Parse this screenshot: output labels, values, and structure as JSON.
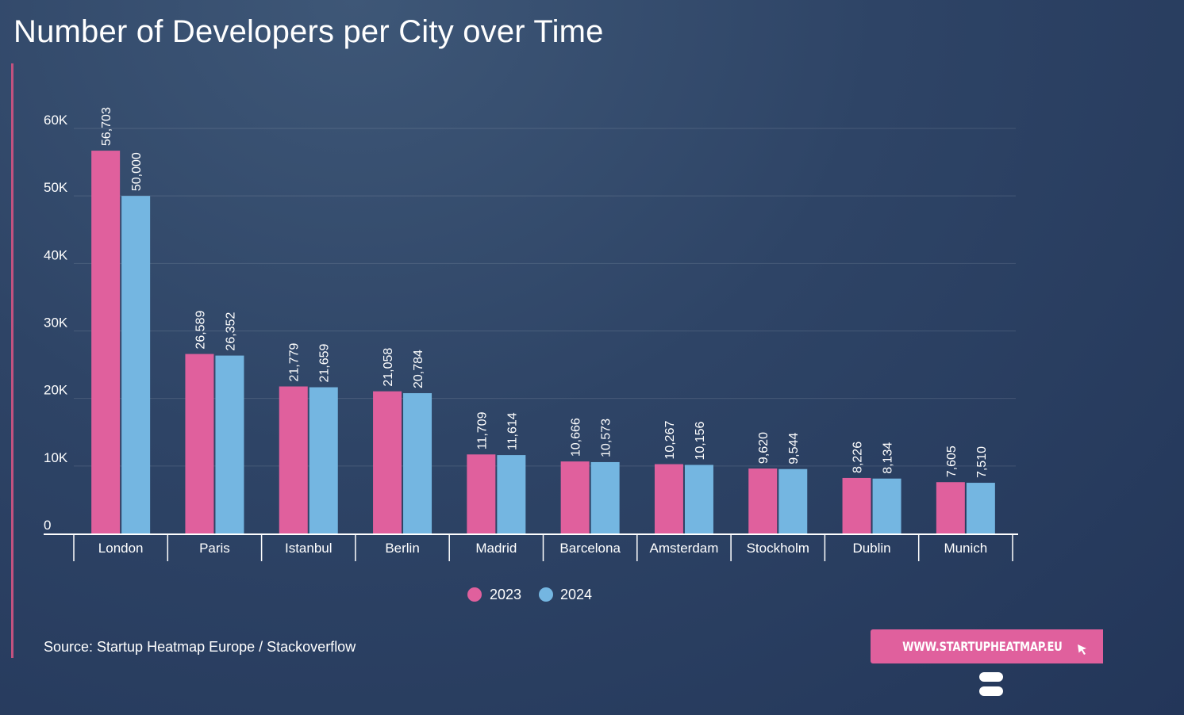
{
  "chart_data": {
    "type": "bar",
    "title": "Number of Developers per City over Time",
    "categories": [
      "London",
      "Paris",
      "Istanbul",
      "Berlin",
      "Madrid",
      "Barcelona",
      "Amsterdam",
      "Stockholm",
      "Dublin",
      "Munich"
    ],
    "series": [
      {
        "name": "2023",
        "color": "#e0609d",
        "values": [
          56703,
          26589,
          21779,
          21058,
          11709,
          10666,
          10267,
          9620,
          8226,
          7605
        ],
        "labels": [
          "56,703",
          "26,589",
          "21,779",
          "21,058",
          "11,709",
          "10,666",
          "10,267",
          "9,620",
          "8,226",
          "7,605"
        ]
      },
      {
        "name": "2024",
        "color": "#74b6e1",
        "values": [
          50000,
          26352,
          21659,
          20784,
          11614,
          10573,
          10156,
          9544,
          8134,
          7510
        ],
        "labels": [
          "50,000",
          "26,352",
          "21,659",
          "20,784",
          "11,614",
          "10,573",
          "10,156",
          "9,544",
          "8,134",
          "7,510"
        ]
      }
    ],
    "yticks": [
      0,
      10000,
      20000,
      30000,
      40000,
      50000,
      60000
    ],
    "ytick_labels": [
      "0",
      "10K",
      "20K",
      "30K",
      "40K",
      "50K",
      "60K"
    ],
    "ylim": [
      0,
      60000
    ],
    "xlabel": "",
    "ylabel": "",
    "grid": true,
    "legend": "bottom-center"
  },
  "source": "Source: Startup Heatmap Europe / Stackoverflow",
  "cta": {
    "label": "WWW.STARTUPHEATMAP.EU",
    "icon": "cursor-icon"
  },
  "logo": {
    "icon": "startup-heatmap-logo"
  },
  "colors": {
    "accent": "#c2527f",
    "series_2023": "#e0609d",
    "series_2024": "#74b6e1"
  }
}
